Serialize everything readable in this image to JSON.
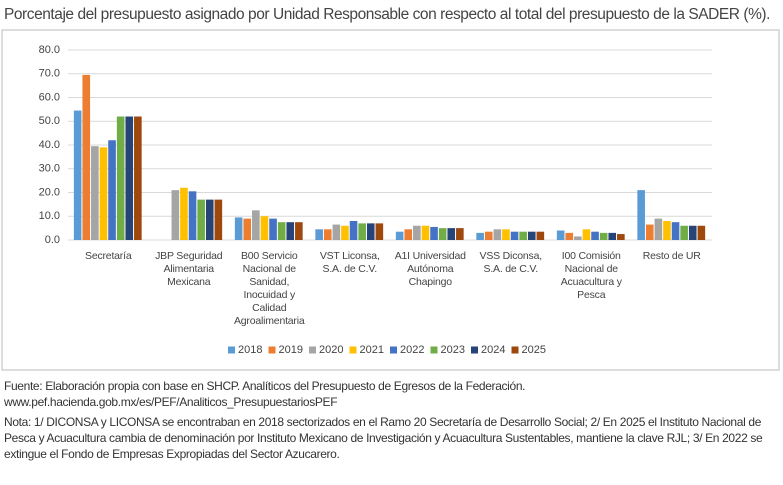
{
  "chart_data": {
    "type": "bar",
    "title": "Porcentaje del presupuesto asignado por Unidad Responsable con respecto al total del presupuesto de la SADER (%).",
    "categories": [
      "Secretaría",
      "JBP Seguridad Alimentaria Mexicana",
      "B00 Servicio Nacional de Sanidad, Inocuidad y Calidad Agroalimentaria",
      "VST Liconsa, S.A. de C.V.",
      "A1I Universidad Autónoma Chapingo",
      "VSS Diconsa, S.A. de C.V.",
      "I00 Comisión Nacional de Acuacultura y Pesca",
      "Resto de UR"
    ],
    "series": [
      {
        "name": "2018",
        "color": "#5b9bd5",
        "values": [
          54.5,
          null,
          9.5,
          4.5,
          3.5,
          3,
          4,
          21
        ]
      },
      {
        "name": "2019",
        "color": "#ed7d31",
        "values": [
          69.5,
          null,
          9,
          4.5,
          4.5,
          3.5,
          3,
          6.5
        ]
      },
      {
        "name": "2020",
        "color": "#a5a5a5",
        "values": [
          39.5,
          21,
          12.5,
          6.5,
          6,
          4.5,
          1.5,
          9
        ]
      },
      {
        "name": "2021",
        "color": "#ffc000",
        "values": [
          39,
          22,
          10,
          6,
          6,
          4.5,
          4.5,
          8
        ]
      },
      {
        "name": "2022",
        "color": "#4472c4",
        "values": [
          42,
          20.5,
          9,
          8,
          5.5,
          3.5,
          3.5,
          7.5
        ]
      },
      {
        "name": "2023",
        "color": "#70ad47",
        "values": [
          52,
          17,
          7.5,
          7,
          5,
          3.5,
          3,
          6
        ]
      },
      {
        "name": "2024",
        "color": "#264478",
        "values": [
          52,
          17,
          7.5,
          7,
          5,
          3.5,
          3,
          6
        ]
      },
      {
        "name": "2025",
        "color": "#9e480e",
        "values": [
          52,
          17,
          7.5,
          7,
          5,
          3.5,
          2.5,
          6
        ]
      }
    ],
    "ylim": [
      0,
      80
    ],
    "yticks": [
      {
        "value": 0,
        "label": "0.0"
      },
      {
        "value": 10,
        "label": "10.0"
      },
      {
        "value": 20,
        "label": "20.0"
      },
      {
        "value": 30,
        "label": "30.0"
      },
      {
        "value": 40,
        "label": "40.0"
      },
      {
        "value": 50,
        "label": "50.0"
      },
      {
        "value": 60,
        "label": "60.0"
      },
      {
        "value": 70,
        "label": "70.0"
      },
      {
        "value": 80,
        "label": "80.0"
      }
    ],
    "grid": true,
    "legend": "bottom",
    "source": "Fuente: Elaboración propia con base en SHCP. Analíticos del Presupuesto de Egresos de la Federación. www.pef.hacienda.gob.mx/es/PEF/Analiticos_PresupuestariosPEF",
    "note": "Nota: 1/ DICONSA y LICONSA se encontraban en 2018 sectorizados en el Ramo 20 Secretaría de Desarrollo Social; 2/ En 2025 el Instituto Nacional de Pesca y Acuacultura cambia de denominación por Instituto Mexicano de Investigación y Acuacultura Sustentables, mantiene la clave RJL; 3/ En 2022 se extingue el Fondo de Empresas Expropiadas del Sector Azucarero."
  }
}
